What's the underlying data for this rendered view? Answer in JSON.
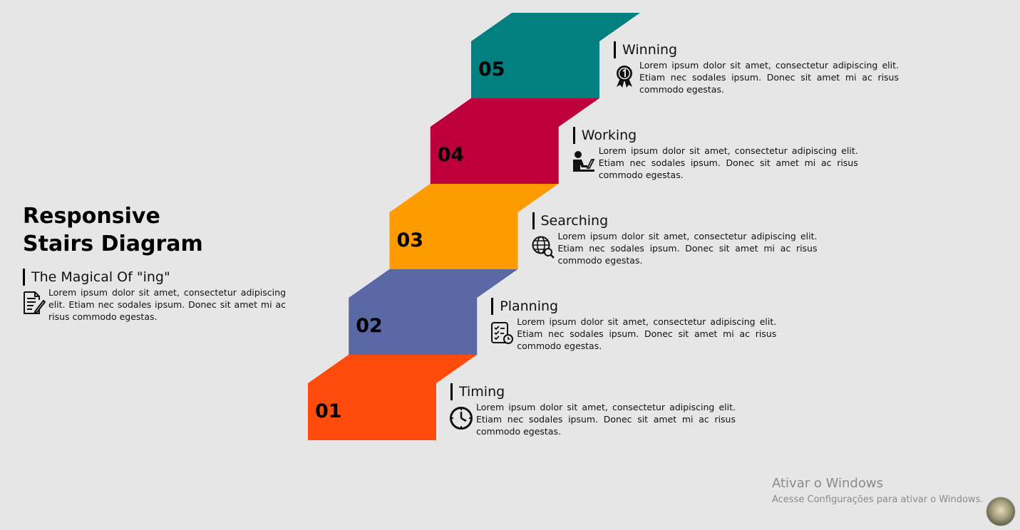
{
  "title": {
    "line1": "Responsive",
    "line2": "Stairs Diagram"
  },
  "intro": {
    "heading": "The Magical Of \"ing\"",
    "text": "Lorem ipsum dolor sit amet, consectetur adipiscing elit. Etiam nec sodales ipsum. Donec sit amet mi ac risus commodo egestas.",
    "icon": "document-edit-icon"
  },
  "steps": [
    {
      "number": "01",
      "label": "Timing",
      "icon": "clock-icon",
      "color": "#ff4b0c",
      "text": "Lorem ipsum dolor sit amet, consectetur adipiscing elit. Etiam nec sodales ipsum. Donec sit amet mi ac risus commodo egestas."
    },
    {
      "number": "02",
      "label": "Planning",
      "icon": "checklist-icon",
      "color": "#5a68a6",
      "text": "Lorem ipsum dolor sit amet, consectetur adipiscing elit. Etiam nec sodales ipsum. Donec sit amet mi ac risus commodo egestas."
    },
    {
      "number": "03",
      "label": "Searching",
      "icon": "globe-search-icon",
      "color": "#fe9b00",
      "text": "Lorem ipsum dolor sit amet, consectetur adipiscing elit. Etiam nec sodales ipsum. Donec sit amet mi ac risus commodo egestas."
    },
    {
      "number": "04",
      "label": "Working",
      "icon": "person-laptop-icon",
      "color": "#bd003d",
      "text": "Lorem ipsum dolor sit amet, consectetur adipiscing elit. Etiam nec sodales ipsum. Donec sit amet mi ac risus commodo egestas."
    },
    {
      "number": "05",
      "label": "Winning",
      "icon": "award-medal-icon",
      "color": "#028080",
      "text": "Lorem ipsum dolor sit amet, consectetur adipiscing elit. Etiam nec sodales ipsum. Donec sit amet mi ac risus commodo egestas."
    }
  ],
  "watermark": {
    "title": "Ativar o Windows",
    "subtitle": "Acesse Configurações para ativar o Windows."
  }
}
